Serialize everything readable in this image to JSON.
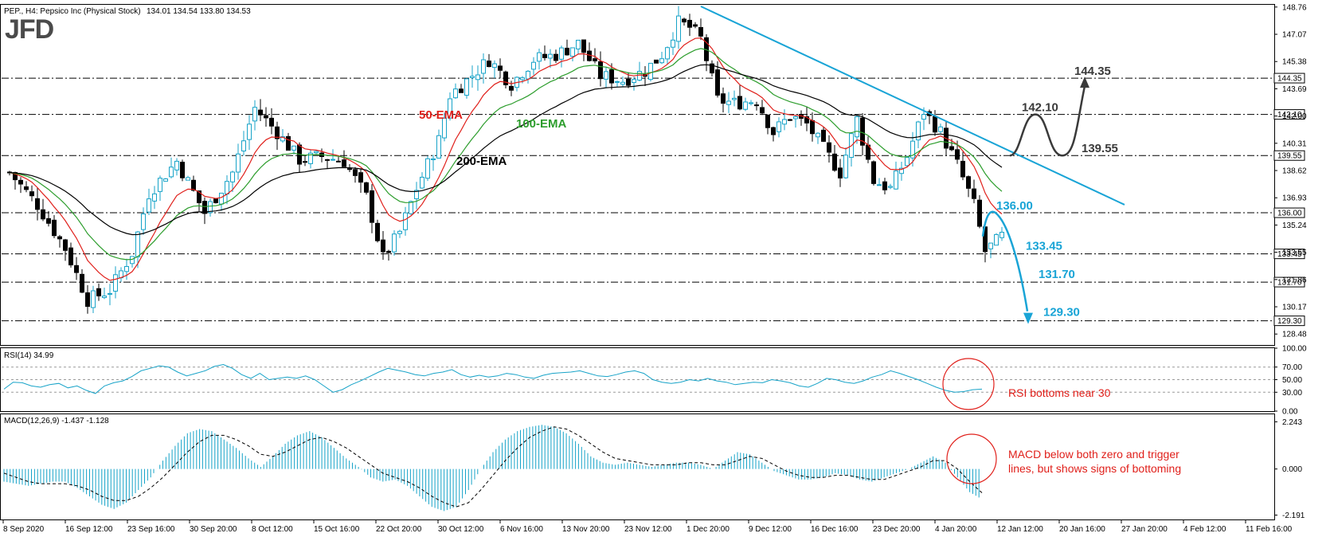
{
  "header": {
    "title": "PEP., H4: Pepsico Inc (Physical Stock)",
    "ohlc": "134.01 134.54 133.80 134.53",
    "logo": "JFD"
  },
  "colors": {
    "up": "#17a3c8",
    "down": "#000000",
    "ema50": "#e0201b",
    "ema100": "#2c9d2c",
    "ema200": "#000000",
    "trendline": "#19a4d6",
    "bear_path": "#19a4d6",
    "bull_path": "#3a3a3a",
    "note": "#e0201b"
  },
  "chart_data": [
    {
      "type": "candlestick",
      "title": "PEP., H4: Pepsico Inc (Physical Stock)",
      "ylim": [
        127.8,
        148.9
      ],
      "y_ticks": [
        "148.76",
        "147.07",
        "145.38",
        "143.69",
        "142.00",
        "140.31",
        "138.62",
        "136.93",
        "135.24",
        "133.55",
        "131.86",
        "130.17",
        "128.48"
      ],
      "x_ticks": [
        "8 Sep 2020",
        "16 Sep 12:00",
        "23 Sep 16:00",
        "30 Sep 20:00",
        "8 Oct 12:00",
        "15 Oct 16:00",
        "22 Oct 20:00",
        "30 Oct 12:00",
        "6 Nov 16:00",
        "13 Nov 20:00",
        "23 Nov 12:00",
        "1 Dec 20:00",
        "9 Dec 12:00",
        "16 Dec 16:00",
        "23 Dec 20:00",
        "4 Jan 20:00",
        "12 Jan 12:00",
        "20 Jan 16:00",
        "27 Jan 20:00",
        "4 Feb 12:00",
        "11 Feb 16:00"
      ],
      "close_path": [
        [
          0,
          138.5
        ],
        [
          5,
          136.5
        ],
        [
          10,
          133.8
        ],
        [
          14,
          130.6
        ],
        [
          18,
          131.2
        ],
        [
          22,
          133.5
        ],
        [
          25,
          137.2
        ],
        [
          30,
          139.2
        ],
        [
          35,
          136.0
        ],
        [
          40,
          138.5
        ],
        [
          44,
          142.5
        ],
        [
          48,
          141.0
        ],
        [
          52,
          139.3
        ],
        [
          56,
          139.5
        ],
        [
          60,
          139.2
        ],
        [
          64,
          137.0
        ],
        [
          67,
          133.2
        ],
        [
          70,
          134.8
        ],
        [
          73,
          137.5
        ],
        [
          77,
          140.5
        ],
        [
          79,
          143.3
        ],
        [
          82,
          144.2
        ],
        [
          86,
          145.5
        ],
        [
          90,
          144.0
        ],
        [
          94,
          145.5
        ],
        [
          98,
          145.8
        ],
        [
          102,
          146.5
        ],
        [
          106,
          144.5
        ],
        [
          110,
          144.2
        ],
        [
          114,
          144.8
        ],
        [
          117,
          145.8
        ],
        [
          120,
          147.8
        ],
        [
          122,
          147.5
        ],
        [
          124,
          146.8
        ],
        [
          127,
          143.0
        ],
        [
          130,
          142.8
        ],
        [
          134,
          143.0
        ],
        [
          137,
          141.0
        ],
        [
          140,
          142.0
        ],
        [
          143,
          141.5
        ],
        [
          146,
          140.0
        ],
        [
          149,
          138.5
        ],
        [
          152,
          141.8
        ],
        [
          155,
          138.0
        ],
        [
          158,
          137.5
        ],
        [
          161,
          139.5
        ],
        [
          164,
          142.3
        ],
        [
          167,
          141.0
        ],
        [
          170,
          139.0
        ],
        [
          173,
          136.5
        ],
        [
          175,
          133.6
        ],
        [
          178,
          134.53
        ]
      ],
      "levels": [
        {
          "value": 144.35,
          "label": "144.35",
          "box": "144.35"
        },
        {
          "value": 142.1,
          "label": "142.10",
          "box": "142.10"
        },
        {
          "value": 139.55,
          "label": "139.55",
          "box": "139.55"
        },
        {
          "value": 136.0,
          "label": "136.00",
          "box": "136.00"
        },
        {
          "value": 133.45,
          "label": "133.45",
          "box": "133.45"
        },
        {
          "value": 131.7,
          "label": "131.70",
          "box": "131.70"
        },
        {
          "value": 129.3,
          "label": "129.30",
          "box": "129.30"
        }
      ],
      "ema_labels": {
        "ema50": "50-EMA",
        "ema100": "100-EMA",
        "ema200": "200-EMA"
      },
      "trendline": [
        [
          124,
          148.8
        ],
        [
          200,
          136.5
        ]
      ]
    },
    {
      "type": "line",
      "title": "RSI(14) 34.99",
      "ylim": [
        0,
        100
      ],
      "y_ticks": [
        "100.00",
        "70.00",
        "50.00",
        "30.00",
        "0.00"
      ],
      "levels": [
        70,
        50,
        30
      ],
      "values": [
        35,
        46,
        45,
        40,
        38,
        42,
        44,
        37,
        40,
        33,
        28,
        40,
        45,
        48,
        55,
        64,
        68,
        72,
        70,
        62,
        56,
        60,
        64,
        71,
        74,
        68,
        58,
        52,
        60,
        50,
        52,
        54,
        52,
        56,
        50,
        40,
        30,
        34,
        42,
        48,
        55,
        62,
        68,
        65,
        62,
        58,
        56,
        60,
        62,
        66,
        58,
        54,
        57,
        54,
        56,
        60,
        58,
        54,
        52,
        57,
        60,
        61,
        62,
        64,
        60,
        56,
        55,
        58,
        62,
        64,
        60,
        50,
        46,
        44,
        46,
        50,
        48,
        52,
        48,
        46,
        42,
        44,
        46,
        45,
        50,
        48,
        45,
        40,
        38,
        44,
        52,
        50,
        46,
        44,
        48,
        54,
        58,
        64,
        60,
        55,
        50,
        44,
        38,
        33,
        30,
        31,
        34,
        35
      ],
      "note": "RSI bottoms near 30"
    },
    {
      "type": "bar",
      "title": "MACD(12,26,9) -1.437 -1.128",
      "ylim": [
        -2.4,
        2.6
      ],
      "y_ticks": [
        "2.243",
        "0.000",
        "-2.191"
      ],
      "histogram": [
        -0.6,
        -0.7,
        -0.8,
        -0.7,
        -0.6,
        -0.6,
        -0.9,
        -1.3,
        -1.7,
        -1.9,
        -1.6,
        -1.0,
        -0.4,
        0.4,
        1.1,
        1.7,
        1.9,
        1.8,
        1.4,
        1.0,
        0.5,
        0.1,
        0.6,
        1.2,
        1.6,
        1.8,
        1.5,
        1.0,
        0.5,
        0.1,
        -0.4,
        -0.6,
        -0.5,
        -0.8,
        -1.3,
        -1.8,
        -2.0,
        -1.8,
        -1.0,
        0.0,
        0.8,
        1.4,
        1.8,
        2.0,
        2.1,
        2.0,
        1.7,
        1.2,
        0.6,
        0.3,
        0.2,
        0.3,
        0.2,
        0.1,
        0.2,
        0.3,
        0.3,
        0.2,
        0.0,
        0.4,
        0.8,
        0.7,
        0.3,
        -0.1,
        -0.3,
        -0.5,
        -0.5,
        -0.4,
        -0.2,
        -0.3,
        -0.5,
        -0.6,
        -0.4,
        -0.2,
        0.0,
        0.3,
        0.6,
        0.3,
        -0.4,
        -1.1,
        -1.44
      ],
      "signal": [
        -0.2,
        -0.4,
        -0.6,
        -0.7,
        -0.7,
        -0.7,
        -0.8,
        -1.0,
        -1.3,
        -1.5,
        -1.5,
        -1.3,
        -0.9,
        -0.4,
        0.2,
        0.8,
        1.3,
        1.6,
        1.6,
        1.4,
        1.1,
        0.7,
        0.6,
        0.8,
        1.1,
        1.4,
        1.5,
        1.3,
        1.0,
        0.6,
        0.2,
        -0.2,
        -0.4,
        -0.6,
        -0.9,
        -1.3,
        -1.6,
        -1.8,
        -1.6,
        -1.0,
        -0.3,
        0.4,
        1.0,
        1.5,
        1.8,
        2.0,
        1.9,
        1.6,
        1.2,
        0.8,
        0.5,
        0.4,
        0.3,
        0.2,
        0.2,
        0.2,
        0.3,
        0.3,
        0.2,
        0.2,
        0.4,
        0.6,
        0.5,
        0.2,
        -0.1,
        -0.3,
        -0.4,
        -0.4,
        -0.3,
        -0.3,
        -0.4,
        -0.5,
        -0.5,
        -0.3,
        -0.1,
        0.1,
        0.4,
        0.4,
        0.0,
        -0.6,
        -1.13
      ],
      "note_lines": [
        "MACD below both zero and trigger",
        "lines, but shows signs of bottoming"
      ]
    }
  ]
}
